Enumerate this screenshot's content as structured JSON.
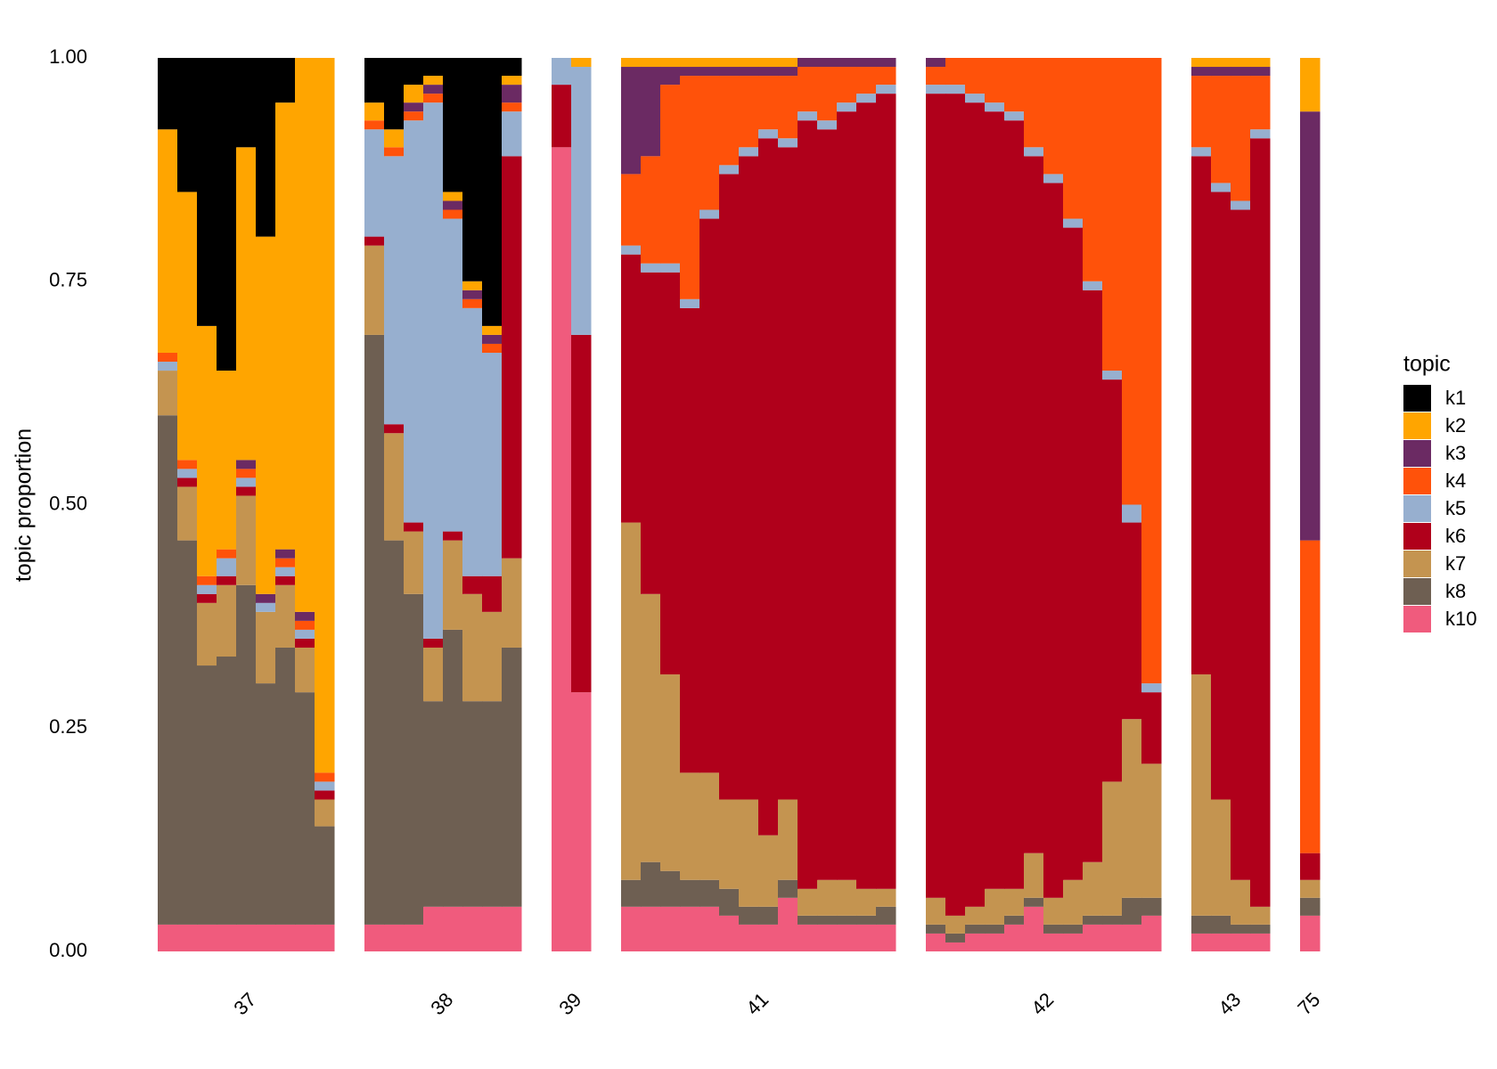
{
  "chart_data": {
    "type": "bar",
    "stacked": true,
    "ylabel": "topic proportion",
    "legend_title": "topic",
    "legend": "right",
    "ylim": [
      0,
      1
    ],
    "yticks": [
      {
        "value": 0,
        "label": "0.00"
      },
      {
        "value": 0.25,
        "label": "0.25"
      },
      {
        "value": 0.5,
        "label": "0.50"
      },
      {
        "value": 0.75,
        "label": "0.75"
      },
      {
        "value": 1,
        "label": "1.00"
      }
    ],
    "series": [
      {
        "name": "k1",
        "color": "#000000"
      },
      {
        "name": "k2",
        "color": "#ffa500"
      },
      {
        "name": "k3",
        "color": "#6b2a63"
      },
      {
        "name": "k4",
        "color": "#ff520a"
      },
      {
        "name": "k5",
        "color": "#97afcf"
      },
      {
        "name": "k6",
        "color": "#b0001b"
      },
      {
        "name": "k7",
        "color": "#c49450"
      },
      {
        "name": "k8",
        "color": "#6e5f52"
      },
      {
        "name": "k10",
        "color": "#f05b7d"
      }
    ],
    "groups": [
      {
        "label": "37",
        "samples": [
          [
            0.08,
            0.25,
            0,
            0.01,
            0.01,
            0,
            0.05,
            0.57,
            0.03
          ],
          [
            0.15,
            0.3,
            0,
            0.01,
            0.01,
            0.01,
            0.06,
            0.43,
            0.03
          ],
          [
            0.3,
            0.28,
            0,
            0.01,
            0.01,
            0.01,
            0.07,
            0.29,
            0.03
          ],
          [
            0.35,
            0.2,
            0,
            0.01,
            0.02,
            0.01,
            0.08,
            0.3,
            0.03
          ],
          [
            0.1,
            0.35,
            0.01,
            0.01,
            0.01,
            0.01,
            0.1,
            0.38,
            0.03
          ],
          [
            0.2,
            0.4,
            0.01,
            0,
            0.01,
            0,
            0.08,
            0.27,
            0.03
          ],
          [
            0.05,
            0.5,
            0.01,
            0.01,
            0.01,
            0.01,
            0.07,
            0.31,
            0.03
          ],
          [
            0,
            0.62,
            0.01,
            0.01,
            0.01,
            0.01,
            0.05,
            0.26,
            0.03
          ],
          [
            0,
            0.8,
            0,
            0.01,
            0.01,
            0.01,
            0.03,
            0.11,
            0.03
          ]
        ]
      },
      {
        "label": "38",
        "samples": [
          [
            0.05,
            0.02,
            0,
            0.01,
            0.12,
            0.01,
            0.1,
            0.66,
            0.03
          ],
          [
            0.08,
            0.02,
            0,
            0.01,
            0.3,
            0.01,
            0.12,
            0.43,
            0.03
          ],
          [
            0.03,
            0.02,
            0.01,
            0.01,
            0.45,
            0.01,
            0.07,
            0.37,
            0.03
          ],
          [
            0.02,
            0.01,
            0.01,
            0.01,
            0.6,
            0.01,
            0.06,
            0.23,
            0.05
          ],
          [
            0.15,
            0.01,
            0.01,
            0.01,
            0.35,
            0.01,
            0.1,
            0.31,
            0.05
          ],
          [
            0.25,
            0.01,
            0.01,
            0.01,
            0.3,
            0.02,
            0.12,
            0.23,
            0.05
          ],
          [
            0.3,
            0.01,
            0.01,
            0.01,
            0.25,
            0.04,
            0.1,
            0.23,
            0.05
          ],
          [
            0.02,
            0.01,
            0.02,
            0.01,
            0.05,
            0.45,
            0.1,
            0.29,
            0.05
          ]
        ]
      },
      {
        "label": "39",
        "samples": [
          [
            0,
            0,
            0,
            0,
            0.03,
            0.07,
            0,
            0,
            0.9
          ],
          [
            0,
            0.01,
            0,
            0,
            0.3,
            0.4,
            0,
            0,
            0.29
          ]
        ]
      },
      {
        "label": "41",
        "samples": [
          [
            0,
            0.01,
            0.12,
            0.08,
            0.01,
            0.3,
            0.4,
            0.03,
            0.05
          ],
          [
            0,
            0.01,
            0.1,
            0.12,
            0.01,
            0.36,
            0.3,
            0.05,
            0.05
          ],
          [
            0,
            0.01,
            0.02,
            0.2,
            0.01,
            0.45,
            0.22,
            0.04,
            0.05
          ],
          [
            0,
            0.01,
            0.01,
            0.25,
            0.01,
            0.52,
            0.12,
            0.03,
            0.05
          ],
          [
            0,
            0.01,
            0.01,
            0.15,
            0.01,
            0.62,
            0.12,
            0.03,
            0.05
          ],
          [
            0,
            0.01,
            0.01,
            0.1,
            0.01,
            0.7,
            0.1,
            0.03,
            0.04
          ],
          [
            0,
            0.01,
            0.01,
            0.08,
            0.01,
            0.72,
            0.12,
            0.02,
            0.03
          ],
          [
            0,
            0.01,
            0.01,
            0.06,
            0.01,
            0.78,
            0.08,
            0.02,
            0.03
          ],
          [
            0,
            0.01,
            0.01,
            0.07,
            0.01,
            0.73,
            0.09,
            0.02,
            0.06
          ],
          [
            0,
            0,
            0.01,
            0.05,
            0.01,
            0.86,
            0.03,
            0.01,
            0.03
          ],
          [
            0,
            0,
            0.01,
            0.06,
            0.01,
            0.84,
            0.04,
            0.01,
            0.03
          ],
          [
            0,
            0,
            0.01,
            0.04,
            0.01,
            0.86,
            0.04,
            0.01,
            0.03
          ],
          [
            0,
            0,
            0.01,
            0.03,
            0.01,
            0.88,
            0.03,
            0.01,
            0.03
          ],
          [
            0,
            0,
            0.01,
            0.02,
            0.01,
            0.89,
            0.02,
            0.02,
            0.03
          ]
        ]
      },
      {
        "label": "42",
        "samples": [
          [
            0,
            0,
            0.01,
            0.02,
            0.01,
            0.9,
            0.03,
            0.01,
            0.02
          ],
          [
            0,
            0,
            0,
            0.03,
            0.01,
            0.92,
            0.02,
            0.01,
            0.01
          ],
          [
            0,
            0,
            0,
            0.04,
            0.01,
            0.9,
            0.02,
            0.01,
            0.02
          ],
          [
            0,
            0,
            0,
            0.05,
            0.01,
            0.87,
            0.04,
            0.01,
            0.02
          ],
          [
            0,
            0,
            0,
            0.06,
            0.01,
            0.86,
            0.03,
            0.01,
            0.03
          ],
          [
            0,
            0,
            0,
            0.1,
            0.01,
            0.78,
            0.05,
            0.01,
            0.05
          ],
          [
            0,
            0,
            0,
            0.13,
            0.01,
            0.8,
            0.03,
            0.01,
            0.02
          ],
          [
            0,
            0,
            0,
            0.18,
            0.01,
            0.73,
            0.05,
            0.01,
            0.02
          ],
          [
            0,
            0,
            0,
            0.25,
            0.01,
            0.64,
            0.06,
            0.01,
            0.03
          ],
          [
            0,
            0,
            0,
            0.35,
            0.01,
            0.45,
            0.15,
            0.01,
            0.03
          ],
          [
            0,
            0,
            0,
            0.5,
            0.02,
            0.22,
            0.2,
            0.03,
            0.03
          ],
          [
            0,
            0,
            0,
            0.7,
            0.01,
            0.08,
            0.15,
            0.02,
            0.04
          ]
        ]
      },
      {
        "label": "43",
        "samples": [
          [
            0,
            0.01,
            0.01,
            0.08,
            0.01,
            0.58,
            0.27,
            0.02,
            0.02
          ],
          [
            0,
            0.01,
            0.01,
            0.12,
            0.01,
            0.68,
            0.13,
            0.02,
            0.02
          ],
          [
            0,
            0.01,
            0.01,
            0.14,
            0.01,
            0.75,
            0.05,
            0.01,
            0.02
          ],
          [
            0,
            0.01,
            0.01,
            0.06,
            0.01,
            0.86,
            0.02,
            0.01,
            0.02
          ]
        ]
      },
      {
        "label": "75",
        "samples": [
          [
            0,
            0.06,
            0.48,
            0.35,
            0,
            0.03,
            0.02,
            0.02,
            0.04
          ]
        ]
      }
    ]
  }
}
